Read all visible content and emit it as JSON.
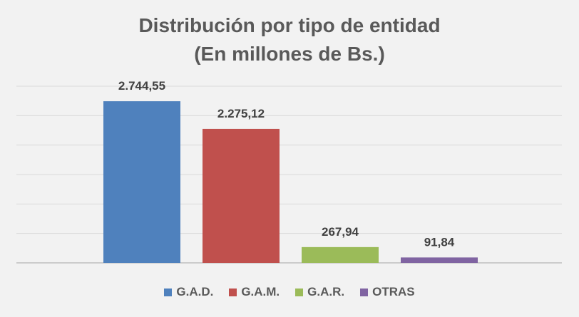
{
  "chart_data": {
    "type": "bar",
    "title": "Distribución por tipo de entidad",
    "subtitle": "(En millones de Bs.)",
    "categories": [
      "G.A.D.",
      "G.A.M.",
      "G.A.R.",
      "OTRAS"
    ],
    "values": [
      2744.55,
      2275.12,
      267.94,
      91.84
    ],
    "value_labels": [
      "2.744,55",
      "2.275,12",
      "267,94",
      "91,84"
    ],
    "colors": [
      "#4f81bd",
      "#c0504d",
      "#9bbb59",
      "#8064a2"
    ],
    "ylim": [
      0,
      3000
    ],
    "grid": true,
    "axis_labels_shown": false,
    "legend_position": "bottom"
  }
}
